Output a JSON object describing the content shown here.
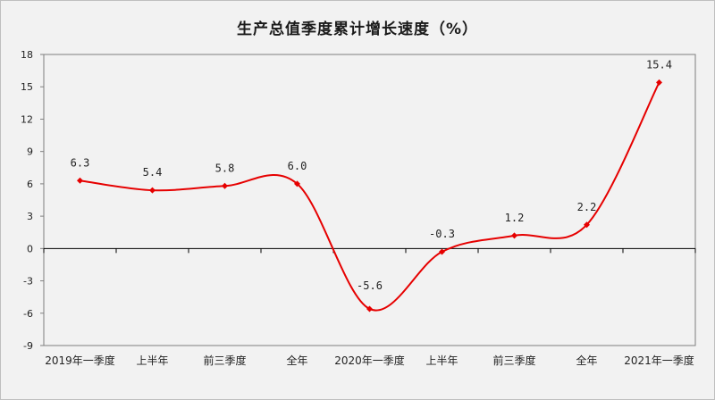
{
  "colors": {
    "line": "#e60000",
    "axis": "#000000",
    "plot_border": "#7f7f7f",
    "background": "#f2f2f2"
  },
  "chart_data": {
    "type": "line",
    "title": "生产总值季度累计增长速度（%）",
    "xlabel": "",
    "ylabel": "",
    "categories": [
      "2019年一季度",
      "上半年",
      "前三季度",
      "全年",
      "2020年一季度",
      "上半年",
      "前三季度",
      "全年",
      "2021年一季度"
    ],
    "values": [
      6.3,
      5.4,
      5.8,
      6.0,
      -5.6,
      -0.3,
      1.2,
      2.2,
      15.4
    ],
    "value_labels": [
      "6.3",
      "5.4",
      "5.8",
      "6.0",
      "-5.6",
      "-0.3",
      "1.2",
      "2.2",
      "15.4"
    ],
    "ylim": [
      -9,
      18
    ],
    "yticks": [
      18,
      15,
      12,
      9,
      6,
      3,
      0,
      -3,
      -6,
      -9
    ],
    "smooth": true,
    "marker": "diamond",
    "grid": false,
    "legend": "none"
  }
}
